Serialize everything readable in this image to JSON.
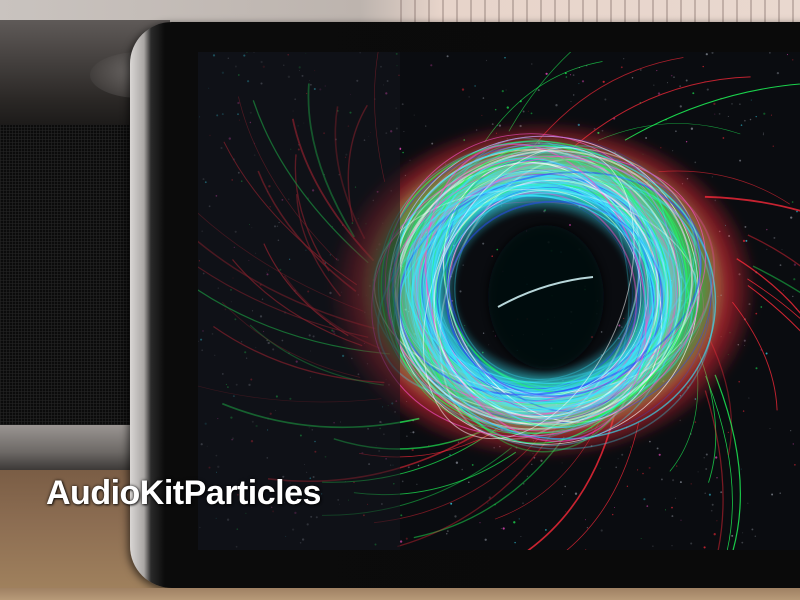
{
  "caption": {
    "text": "AudioKitParticles"
  },
  "visual": {
    "particle_colors": [
      "#39e6ff",
      "#1fff5a",
      "#ff2a3a",
      "#ff4fd0",
      "#2a4bff",
      "#ffffff"
    ],
    "screen_background": "#0a0c10"
  }
}
